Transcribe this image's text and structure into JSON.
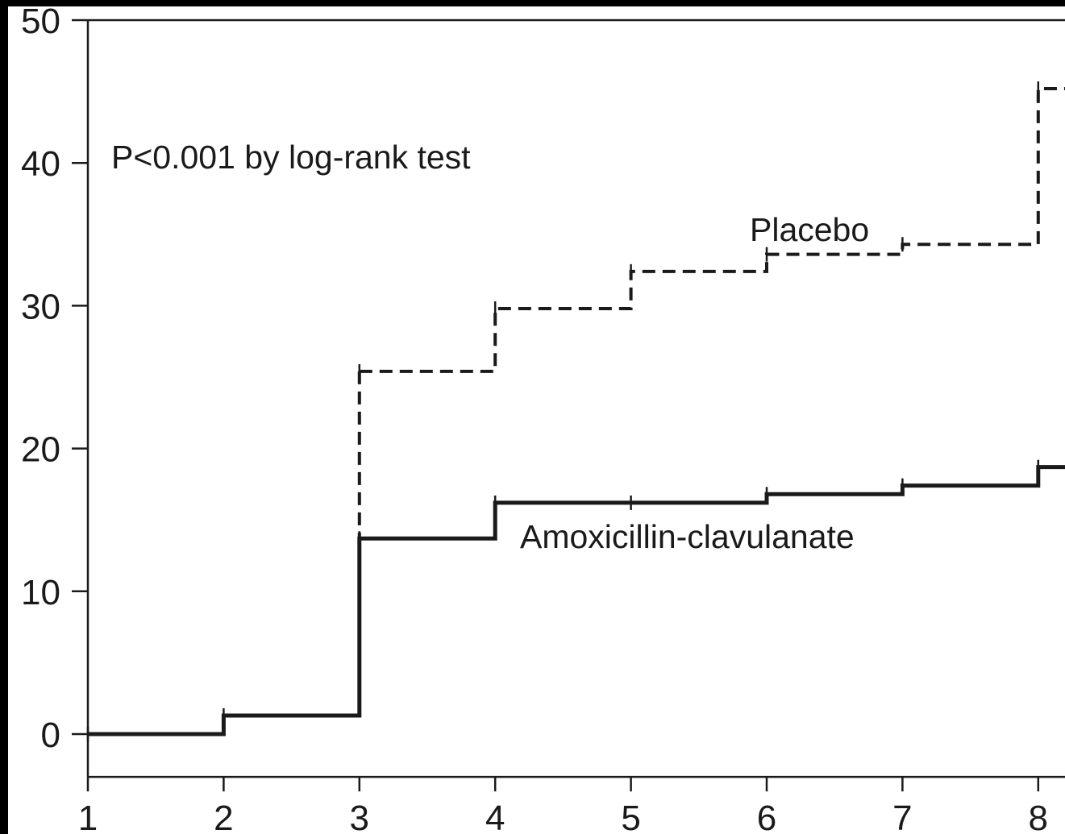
{
  "chart_data": {
    "type": "line",
    "step": true,
    "x_ticks": [
      "1",
      "2",
      "3",
      "4",
      "5",
      "6",
      "7",
      "8"
    ],
    "y_ticks": [
      "0",
      "10",
      "20",
      "30",
      "40",
      "50"
    ],
    "xlim": [
      1,
      8.2
    ],
    "ylim": [
      -3,
      50
    ],
    "grid": false,
    "series": [
      {
        "name": "Placebo",
        "style": "dashed",
        "color": "#1a1a1a",
        "x": [
          3,
          4,
          5,
          6,
          7,
          8,
          8.2
        ],
        "y": [
          25.4,
          29.8,
          32.4,
          33.6,
          34.3,
          45.2,
          45.2
        ]
      },
      {
        "name": "Amoxicillin-clavulanate",
        "style": "solid",
        "color": "#1a1a1a",
        "x": [
          1,
          2,
          3,
          4,
          5,
          6,
          7,
          8,
          8.2
        ],
        "y": [
          0,
          1.3,
          13.7,
          16.2,
          16.2,
          16.8,
          17.4,
          18.7,
          18.7
        ]
      }
    ],
    "annotations": {
      "pvalue": "P<0.001 by log-rank test"
    },
    "colors": {
      "background": "#ffffff",
      "frame": "#000000",
      "ink": "#1a1a1a"
    }
  }
}
